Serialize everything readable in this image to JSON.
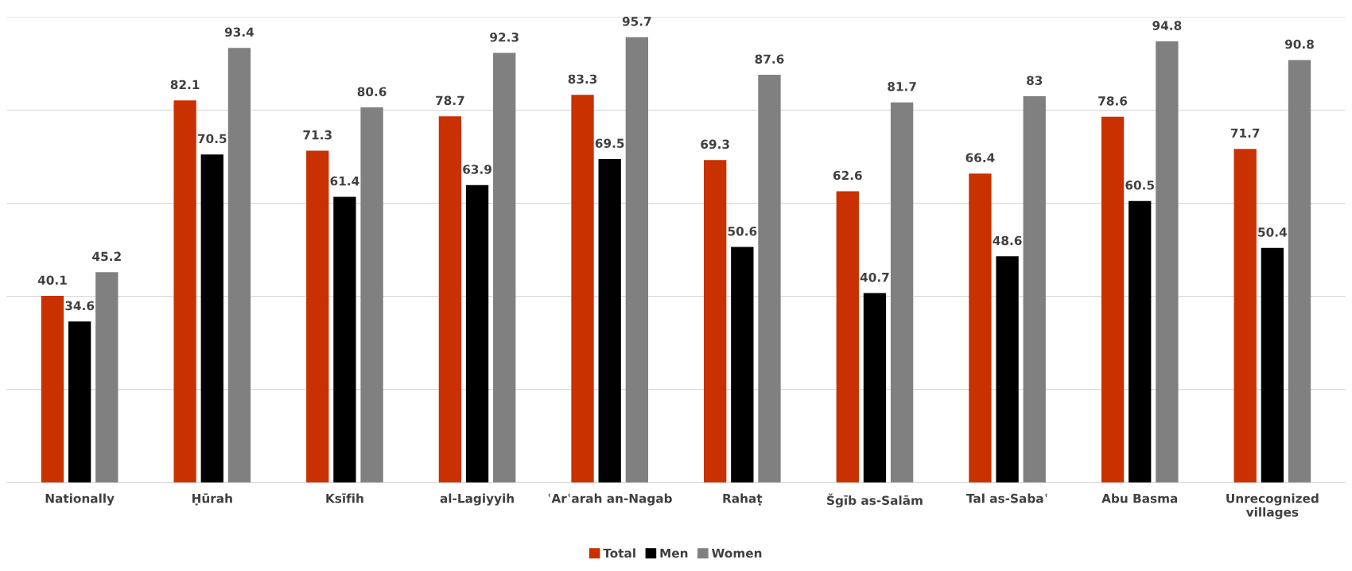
{
  "chart_data": {
    "type": "bar",
    "categories": [
      "Nationally",
      "Ḥūrah",
      "Ksīfih",
      "al-Lagiyyih",
      "ʿArʿarah an-Nagab",
      "Rahaṭ",
      "Šgīb as-Salām",
      "Tal as-Sabaʿ",
      "Abu Basma",
      "Unrecognized villages"
    ],
    "series": [
      {
        "name": "Total",
        "color": "#c93100",
        "values": [
          40.1,
          82.1,
          71.3,
          78.7,
          83.3,
          69.3,
          62.6,
          66.4,
          78.6,
          71.7
        ]
      },
      {
        "name": "Men",
        "color": "#000000",
        "values": [
          34.6,
          70.5,
          61.4,
          63.9,
          69.5,
          50.6,
          40.7,
          48.6,
          60.5,
          50.4
        ]
      },
      {
        "name": "Women",
        "color": "#808080",
        "values": [
          45.2,
          93.4,
          80.6,
          92.3,
          95.7,
          87.6,
          81.7,
          83,
          94.8,
          90.8
        ]
      }
    ],
    "ylim": [
      0,
      100
    ],
    "yticks": [
      {
        "value": 0,
        "label": null
      },
      {
        "value": 20,
        "label": null
      },
      {
        "value": 40,
        "label": null
      },
      {
        "value": 60,
        "label": null
      },
      {
        "value": 80,
        "label": null
      },
      {
        "value": 100,
        "label": null
      }
    ],
    "tick_labels": "x",
    "grid": "y",
    "data_labels": true,
    "legend": "bottom"
  }
}
